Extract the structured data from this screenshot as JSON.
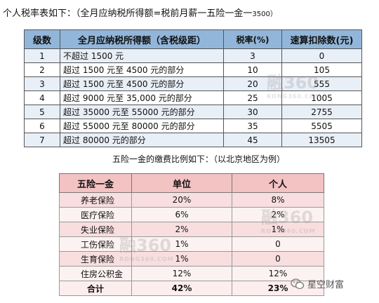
{
  "tax_title_main": "个人税率表如下：（全月应纳税所得额=税前月薪一五险一金一",
  "tax_title_num": "3500）",
  "tax_table": {
    "headers": [
      "级数",
      "全月应纳税所得额（含税级距）",
      "税率(%)",
      "速算扣除数(元)"
    ],
    "rows": [
      [
        "1",
        "不超过 1500 元",
        "3",
        "0"
      ],
      [
        "2",
        "超过 1500 元至 4500 元的部分",
        "10",
        "105"
      ],
      [
        "3",
        "超过 1500 元至 4500 元的部分",
        "20",
        "555"
      ],
      [
        "4",
        "超过 9000 元至 35,000 元的部分",
        "25",
        "1005"
      ],
      [
        "5",
        "超过 35000 元至 55000 元的部分",
        "30",
        "2755"
      ],
      [
        "6",
        "超过 55000 元至 80000 元的部分",
        "35",
        "5505"
      ],
      [
        "7",
        "超过 80000 元的部分",
        "45",
        "13505"
      ]
    ]
  },
  "fund_title": "五险一金的缴费比例如下：（以北京地区为例）",
  "fund_table": {
    "headers": [
      "五险一金",
      "单位",
      "个人"
    ],
    "rows": [
      [
        "养老保险",
        "20%",
        "8%"
      ],
      [
        "医疗保险",
        "6%",
        "2%"
      ],
      [
        "失业保险",
        "2%",
        "1%"
      ],
      [
        "工伤保险",
        "1%",
        "0"
      ],
      [
        "生育保险",
        "1%",
        "0"
      ],
      [
        "住房公积金",
        "12%",
        "12%"
      ]
    ],
    "total": [
      "合计",
      "42%",
      "23%"
    ]
  },
  "watermark_text": "融360",
  "watermark_sub": "RONG360.COM",
  "brand_text": "星空财富",
  "brand_icon": "wechat-icon"
}
